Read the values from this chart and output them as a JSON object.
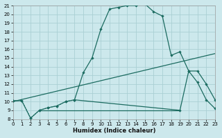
{
  "xlabel": "Humidex (Indice chaleur)",
  "bg_color": "#cce8ec",
  "grid_color": "#aacfd4",
  "line_color": "#1b6b60",
  "xlim": [
    0,
    23
  ],
  "ylim": [
    8,
    21
  ],
  "xticks": [
    0,
    1,
    2,
    3,
    4,
    5,
    6,
    7,
    8,
    9,
    10,
    11,
    12,
    13,
    14,
    15,
    16,
    17,
    18,
    19,
    20,
    21,
    22,
    23
  ],
  "yticks": [
    8,
    9,
    10,
    11,
    12,
    13,
    14,
    15,
    16,
    17,
    18,
    19,
    20,
    21
  ],
  "curve1_x": [
    0,
    1,
    2,
    3,
    4,
    5,
    6,
    7,
    8,
    9,
    10,
    11,
    12,
    13,
    14,
    15,
    16,
    17,
    18,
    19,
    20,
    21,
    22,
    23
  ],
  "curve1_y": [
    10.1,
    10.1,
    8.1,
    9.0,
    9.3,
    9.5,
    10.0,
    10.2,
    13.3,
    15.0,
    18.3,
    20.6,
    20.8,
    21.0,
    21.0,
    21.2,
    20.3,
    19.8,
    15.3,
    15.7,
    13.5,
    12.2,
    10.2,
    9.2
  ],
  "curve2_x": [
    0,
    23
  ],
  "curve2_y": [
    10.0,
    15.5
  ],
  "curve3_x": [
    3,
    19
  ],
  "curve3_y": [
    9.0,
    9.0
  ],
  "curve4_x": [
    0,
    1,
    2,
    3,
    4,
    5,
    6,
    7,
    19,
    20,
    21,
    22,
    23
  ],
  "curve4_y": [
    10.1,
    10.1,
    8.1,
    9.0,
    9.3,
    9.5,
    10.0,
    10.2,
    9.0,
    13.5,
    13.5,
    12.0,
    10.2
  ],
  "curve1_dotted_x": [
    0,
    1,
    2,
    3,
    4,
    5,
    6,
    7
  ],
  "curve1_dotted_y": [
    10.1,
    10.1,
    8.1,
    9.0,
    9.3,
    9.5,
    10.0,
    10.2
  ]
}
